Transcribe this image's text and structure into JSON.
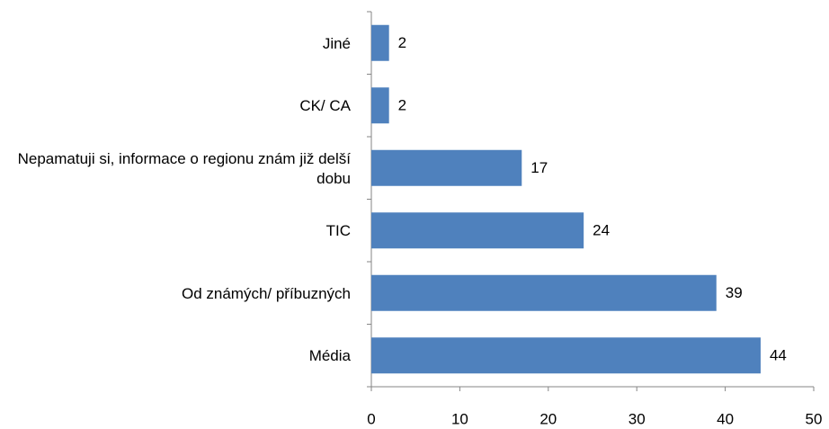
{
  "chart_data": {
    "type": "barh",
    "categories": [
      "Jiné",
      "CK/ CA",
      "Nepamatuji si, informace o regionu znám již delší dobu",
      "TIC",
      "Od známých/ příbuzných",
      "Média"
    ],
    "values": [
      2,
      2,
      17,
      24,
      39,
      44
    ],
    "color": "#4f81bd",
    "xlim": [
      0,
      50
    ],
    "xticks": [
      0,
      10,
      20,
      30,
      40,
      50
    ],
    "grid": false
  }
}
